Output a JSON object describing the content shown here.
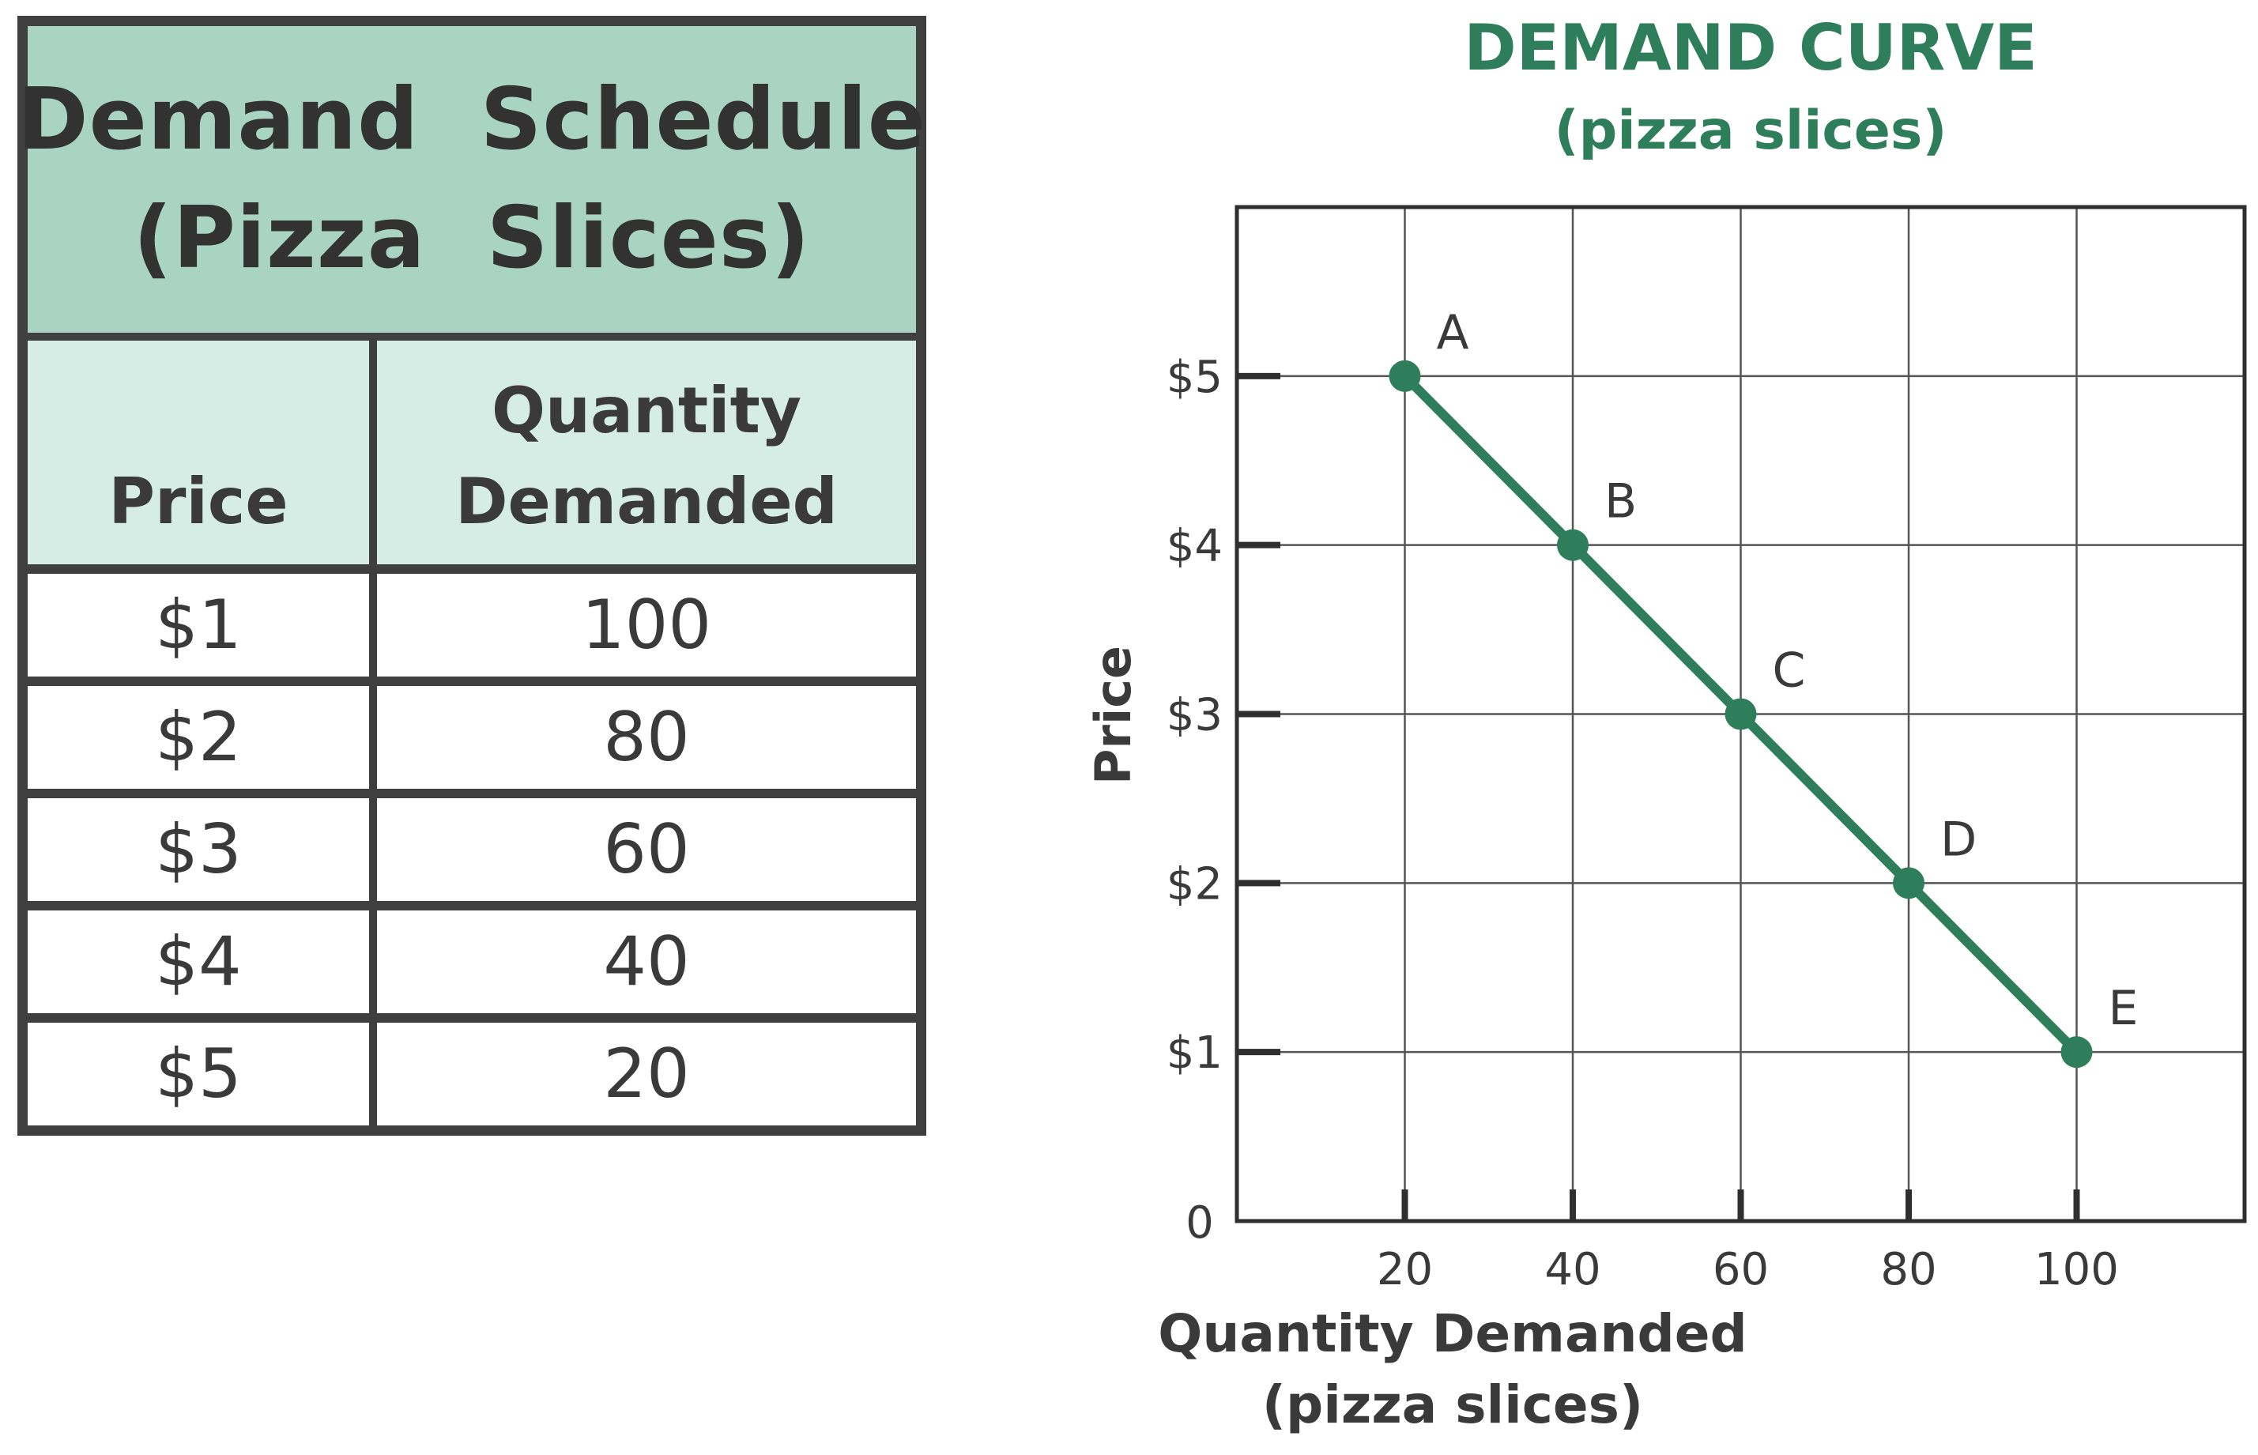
{
  "schedule": {
    "title_line1": "Demand  Schedule",
    "title_line2": "(Pizza  Slices)",
    "price_header": "Price",
    "qty_header_line1": "Quantity",
    "qty_header_line2": "Demanded",
    "rows": [
      {
        "price": "$1",
        "qty": "100"
      },
      {
        "price": "$2",
        "qty": "80"
      },
      {
        "price": "$3",
        "qty": "60"
      },
      {
        "price": "$4",
        "qty": "40"
      },
      {
        "price": "$5",
        "qty": "20"
      }
    ]
  },
  "chart_data": {
    "type": "line",
    "title": "DEMAND CURVE",
    "subtitle": "(pizza slices)",
    "xlabel_line1": "Quantity Demanded",
    "xlabel_line2": "(pizza slices)",
    "ylabel": "Price",
    "origin_label": "0",
    "x_ticks": [
      20,
      40,
      60,
      80,
      100
    ],
    "y_ticks": [
      1,
      2,
      3,
      4,
      5
    ],
    "y_tick_labels": [
      "$1",
      "$2",
      "$3",
      "$4",
      "$5"
    ],
    "xlim": [
      0,
      120
    ],
    "ylim": [
      0,
      6
    ],
    "grid": true,
    "line_color": "#2e7d5b",
    "points": [
      {
        "label": "A",
        "x": 20,
        "y": 5
      },
      {
        "label": "B",
        "x": 40,
        "y": 4
      },
      {
        "label": "C",
        "x": 60,
        "y": 3
      },
      {
        "label": "D",
        "x": 80,
        "y": 2
      },
      {
        "label": "E",
        "x": 100,
        "y": 1
      }
    ]
  }
}
